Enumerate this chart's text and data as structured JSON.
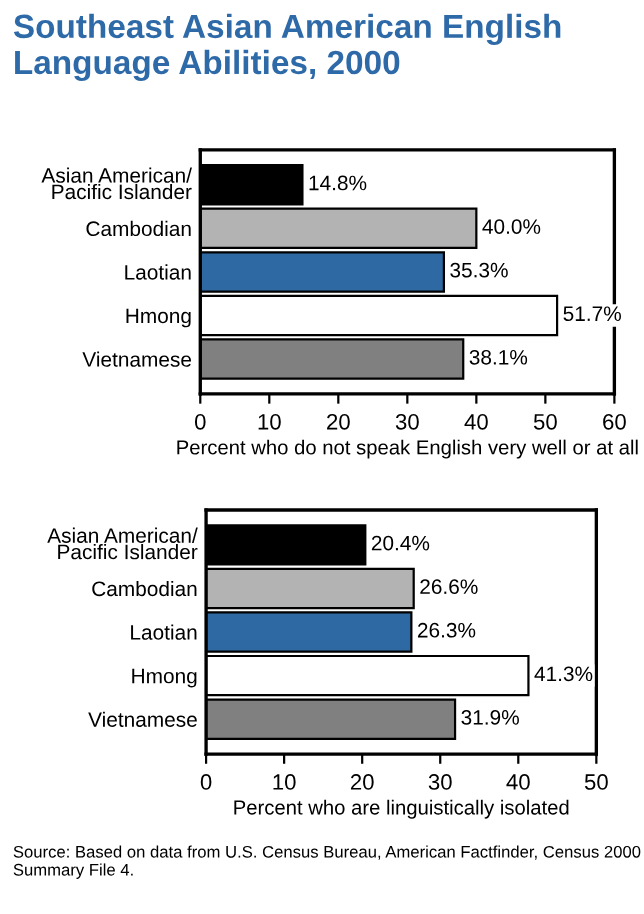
{
  "chart_data": [
    {
      "type": "bar",
      "orientation": "horizontal",
      "title": "Southeast Asian American English Language Abilities, 2000",
      "categories": [
        "Asian American/\nPacific Islander",
        "Cambodian",
        "Laotian",
        "Hmong",
        "Vietnamese"
      ],
      "values": [
        14.8,
        40.0,
        35.3,
        51.7,
        38.1
      ],
      "colors": [
        "#000000",
        "#b3b3b3",
        "#2e69a3",
        "#ffffff",
        "#808080"
      ],
      "value_labels": [
        "14.8%",
        "40.0%",
        "35.3%",
        "51.7%",
        "38.1%"
      ],
      "xlim": [
        0,
        60
      ],
      "xticks": [
        0,
        10,
        20,
        30,
        40,
        50,
        60
      ],
      "xlabel": "Percent who do not speak English very well or at all",
      "grid": false,
      "legend": false
    },
    {
      "type": "bar",
      "orientation": "horizontal",
      "categories": [
        "Asian American/\nPacific Islander",
        "Cambodian",
        "Laotian",
        "Hmong",
        "Vietnamese"
      ],
      "values": [
        20.4,
        26.6,
        26.3,
        41.3,
        31.9
      ],
      "colors": [
        "#000000",
        "#b3b3b3",
        "#2e69a3",
        "#ffffff",
        "#808080"
      ],
      "value_labels": [
        "20.4%",
        "26.6%",
        "26.3%",
        "41.3%",
        "31.9%"
      ],
      "xlim": [
        0,
        50
      ],
      "xticks": [
        0,
        10,
        20,
        30,
        40,
        50
      ],
      "xlabel": "Percent who are linguistically isolated",
      "grid": false,
      "legend": false,
      "annotations": [
        "Source: Based on data from U.S. Census Bureau, American Factfinder, Census 2000 Summary File 4."
      ]
    }
  ]
}
